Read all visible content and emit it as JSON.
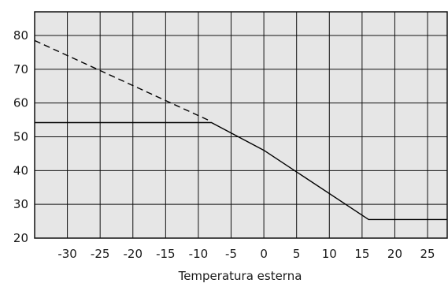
{
  "chart_data": {
    "type": "line",
    "title": "",
    "xlabel": "Temperatura esterna",
    "ylabel": "",
    "xlim": [
      -35,
      28
    ],
    "ylim": [
      20,
      87
    ],
    "x_ticks": [
      -30,
      -25,
      -20,
      -15,
      -10,
      -5,
      0,
      5,
      10,
      15,
      20,
      25
    ],
    "y_ticks": [
      20,
      30,
      40,
      50,
      60,
      70,
      80
    ],
    "grid": true,
    "background": "#e6e6e6",
    "series": [
      {
        "style": "dashed",
        "color": "#000000",
        "x": [
          -35,
          -8
        ],
        "y": [
          78.5,
          54.5
        ]
      },
      {
        "style": "solid",
        "color": "#000000",
        "x": [
          -35,
          -8,
          0,
          16,
          28
        ],
        "y": [
          54.2,
          54.2,
          46,
          25.5,
          25.5
        ]
      }
    ]
  }
}
